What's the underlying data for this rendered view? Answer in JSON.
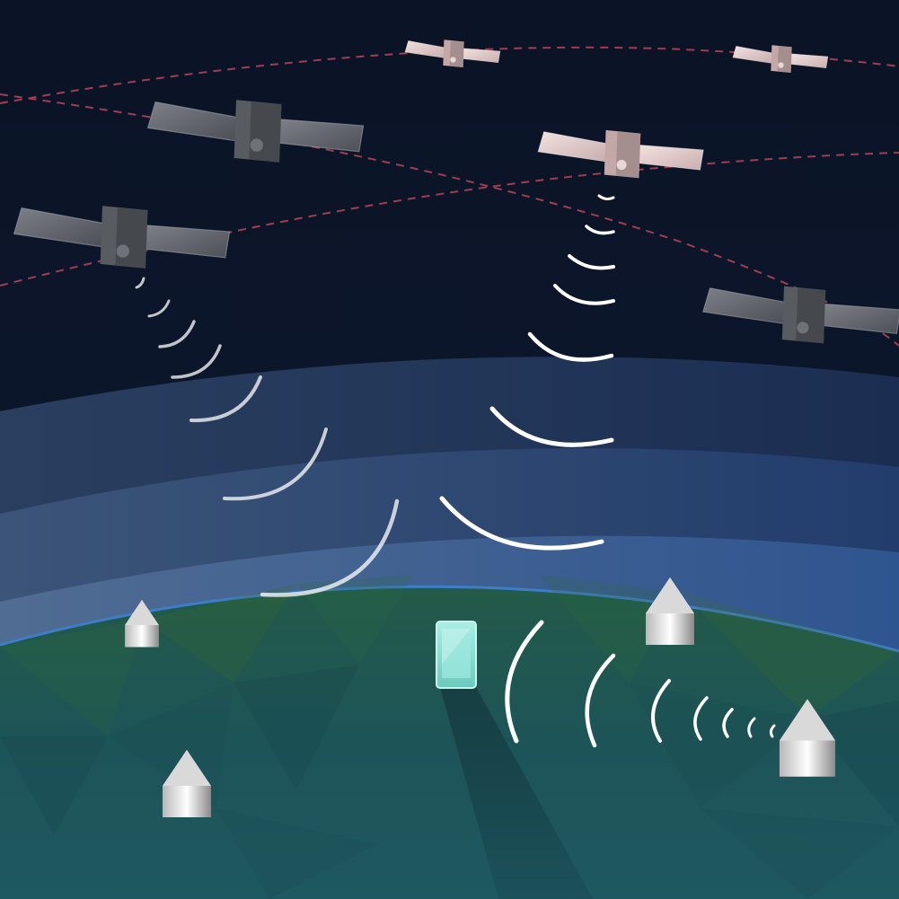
{
  "scene": {
    "colors": {
      "space": "#0b1426",
      "atmosphere_outer": "#1f3357",
      "atmosphere_mid": "#2c4a78",
      "atmosphere_inner": "#3e6296",
      "atmosphere_edge": "#6f8fb3",
      "ground_dark": "#1a4a4e",
      "ground_light": "#246a5e",
      "orbit_line": "#c0485a",
      "signal": "#ffffff",
      "satellite_highlight": "#e8d4d4",
      "satellite_dim": "#8a8d92",
      "phone": "#8fe4d8"
    },
    "icons": [
      "satellite-icon",
      "phone-icon",
      "cell-tower-icon",
      "signal-wave-icon",
      "orbit-path-icon"
    ]
  }
}
